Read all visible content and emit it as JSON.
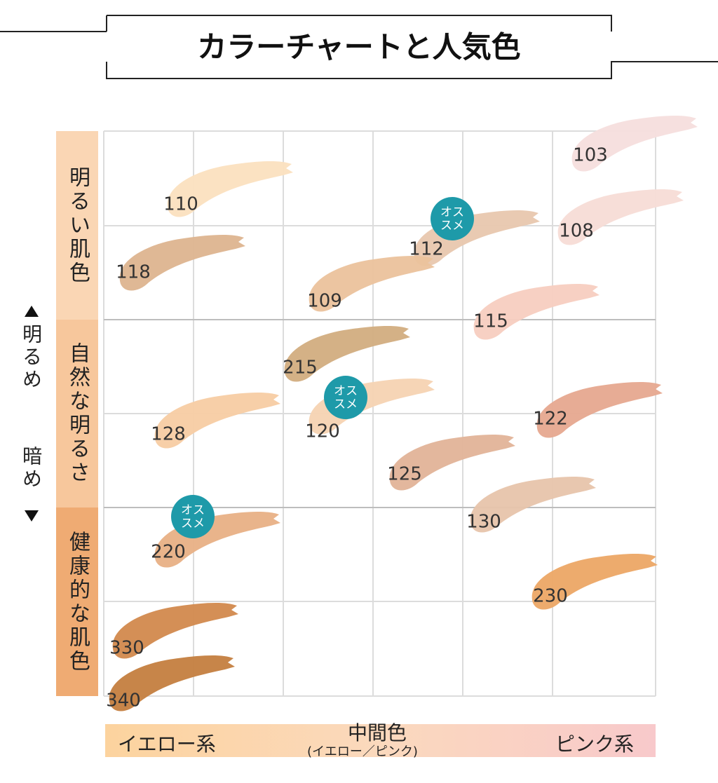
{
  "title": "カラーチャートと人気色",
  "y_axis": {
    "top": "明るめ",
    "bottom": "暗め"
  },
  "rows": [
    "明るい肌色",
    "自然な明るさ",
    "健康的な肌色"
  ],
  "x_axis": {
    "left": "イエロー系",
    "middle": "中間色",
    "middle_note": "(イエロー／ピンク)",
    "right": "ピンク系"
  },
  "badge": [
    "オス",
    "スメ"
  ],
  "swatches": [
    {
      "label": "103",
      "color": "#f6dedd",
      "recommended": false
    },
    {
      "label": "110",
      "color": "#fbe0bf",
      "recommended": false
    },
    {
      "label": "108",
      "color": "#f7dcd6",
      "recommended": false
    },
    {
      "label": "112",
      "color": "#e8c7ae",
      "recommended": true
    },
    {
      "label": "118",
      "color": "#ddb48f",
      "recommended": false
    },
    {
      "label": "109",
      "color": "#ebc29c",
      "recommended": false
    },
    {
      "label": "115",
      "color": "#f7cec0",
      "recommended": false
    },
    {
      "label": "215",
      "color": "#d2ad80",
      "recommended": false
    },
    {
      "label": "120",
      "color": "#f6d3b2",
      "recommended": true
    },
    {
      "label": "128",
      "color": "#f7cca3",
      "recommended": false
    },
    {
      "label": "122",
      "color": "#e6a88f",
      "recommended": false
    },
    {
      "label": "125",
      "color": "#e2b398",
      "recommended": false
    },
    {
      "label": "130",
      "color": "#e7c4ab",
      "recommended": false
    },
    {
      "label": "220",
      "color": "#e8b085",
      "recommended": true
    },
    {
      "label": "230",
      "color": "#eca765",
      "recommended": false
    },
    {
      "label": "330",
      "color": "#d2894d",
      "recommended": false
    },
    {
      "label": "340",
      "color": "#c47e3f",
      "recommended": false
    }
  ]
}
